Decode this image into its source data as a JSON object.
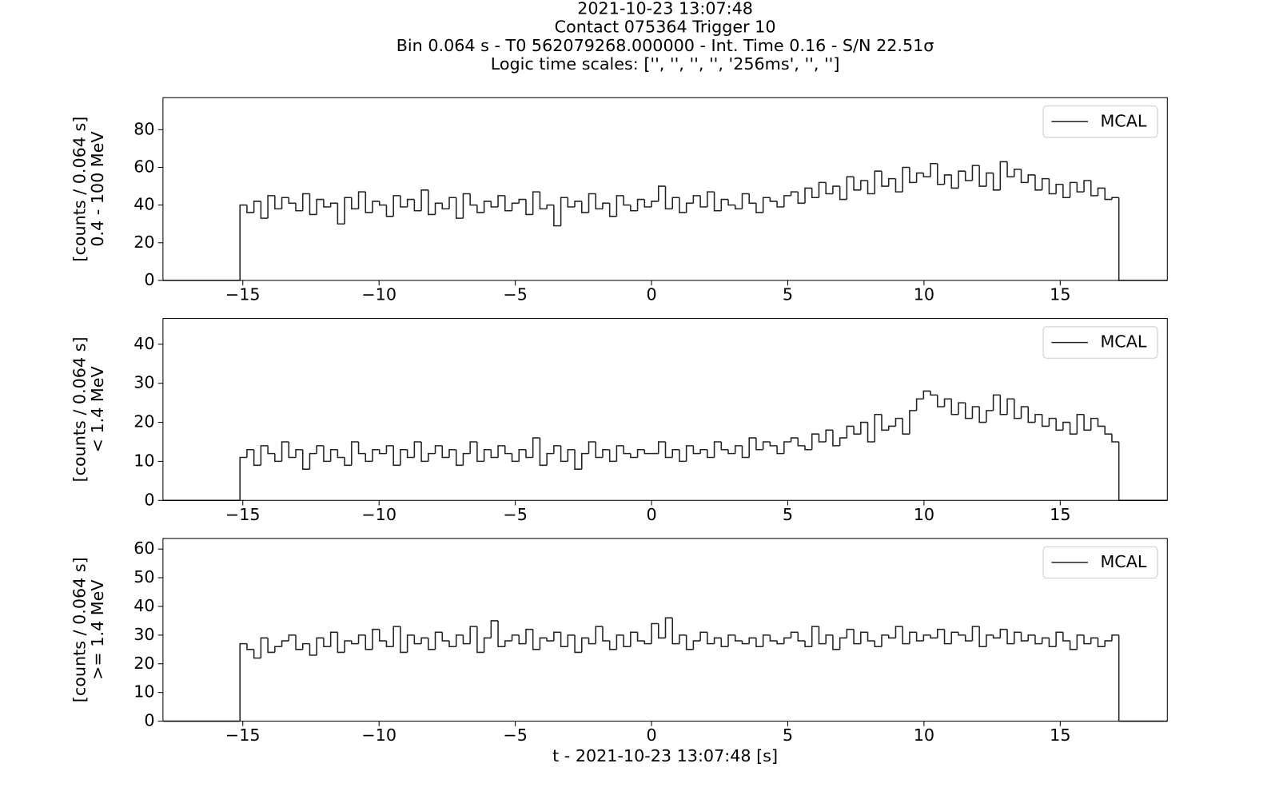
{
  "suptitle": [
    "2021-10-23 13:07:48",
    "Contact 075364   Trigger 10",
    "Bin 0.064 s - T0 562079268.000000 - Int. Time 0.16 - S/N 22.51σ",
    "Logic time scales: ['', '', '', '', '256ms', '', '']"
  ],
  "chart_data": [
    {
      "type": "histogram",
      "ylabel": [
        "[counts / 0.064 s]",
        "0.4 - 100 MeV"
      ],
      "legend": "upper right",
      "xlim": [
        -17.93,
        18.93
      ],
      "xticks": [
        {
          "value": -15,
          "label": "−15"
        },
        {
          "value": -10,
          "label": "−10"
        },
        {
          "value": -5,
          "label": "−5"
        },
        0,
        5,
        10,
        15
      ],
      "ylim": [
        0,
        97
      ],
      "yticks": [
        0,
        20,
        40,
        60,
        80
      ],
      "bins": [
        -15.104,
        -14.848,
        -14.592,
        -14.336,
        -14.08,
        -13.824,
        -13.568,
        -13.312,
        -13.056,
        -12.8,
        -12.544,
        -12.288,
        -12.032,
        -11.776,
        -11.52,
        -11.264,
        -11.008,
        -10.752,
        -10.496,
        -10.24,
        -9.984,
        -9.728,
        -9.472,
        -9.216,
        -8.96,
        -8.704,
        -8.448,
        -8.192,
        -7.936,
        -7.68,
        -7.424,
        -7.168,
        -6.912,
        -6.656,
        -6.4,
        -6.144,
        -5.888,
        -5.632,
        -5.376,
        -5.12,
        -4.864,
        -4.608,
        -4.352,
        -4.096,
        -3.84,
        -3.584,
        -3.328,
        -3.072,
        -2.816,
        -2.56,
        -2.304,
        -2.048,
        -1.792,
        -1.536,
        -1.28,
        -1.024,
        -0.768,
        -0.512,
        -0.256,
        0,
        0.256,
        0.512,
        0.768,
        1.024,
        1.28,
        1.536,
        1.792,
        2.048,
        2.304,
        2.56,
        2.816,
        3.072,
        3.328,
        3.584,
        3.84,
        4.096,
        4.352,
        4.608,
        4.864,
        5.12,
        5.376,
        5.632,
        5.888,
        6.144,
        6.4,
        6.656,
        6.912,
        7.168,
        7.424,
        7.68,
        7.936,
        8.192,
        8.448,
        8.704,
        8.96,
        9.216,
        9.472,
        9.728,
        9.984,
        10.24,
        10.496,
        10.752,
        11.008,
        11.264,
        11.52,
        11.776,
        12.032,
        12.288,
        12.544,
        12.8,
        13.056,
        13.312,
        13.568,
        13.824,
        14.08,
        14.336,
        14.592,
        14.848,
        15.104,
        15.36,
        15.616,
        15.872,
        16.128,
        16.384,
        16.64,
        16.896,
        17.152
      ],
      "series": [
        {
          "name": "MCAL",
          "color": "#222222",
          "values": [
            40,
            36,
            42,
            33,
            45,
            38,
            44,
            41,
            37,
            46,
            35,
            43,
            39,
            41,
            30,
            44,
            38,
            47,
            36,
            42,
            40,
            34,
            45,
            39,
            43,
            37,
            48,
            35,
            41,
            38,
            44,
            33,
            46,
            40,
            36,
            42,
            39,
            45,
            37,
            41,
            43,
            35,
            47,
            38,
            40,
            29,
            44,
            39,
            42,
            36,
            46,
            38,
            41,
            34,
            45,
            40,
            37,
            43,
            39,
            42,
            50,
            38,
            44,
            36,
            41,
            45,
            39,
            47,
            37,
            43,
            40,
            38,
            46,
            41,
            36,
            44,
            42,
            39,
            45,
            47,
            41,
            49,
            44,
            52,
            46,
            50,
            43,
            55,
            48,
            53,
            46,
            58,
            50,
            54,
            47,
            60,
            52,
            57,
            55,
            62,
            51,
            56,
            49,
            58,
            53,
            61,
            50,
            57,
            48,
            63,
            55,
            59,
            52,
            56,
            48,
            54,
            46,
            51,
            44,
            52,
            47,
            53,
            45,
            49,
            43,
            44
          ]
        }
      ]
    },
    {
      "type": "histogram",
      "ylabel": [
        "[counts / 0.064 s]",
        "< 1.4 MeV"
      ],
      "legend": "upper right",
      "xlim": [
        -17.93,
        18.93
      ],
      "xticks": [
        {
          "value": -15,
          "label": "−15"
        },
        {
          "value": -10,
          "label": "−10"
        },
        {
          "value": -5,
          "label": "−5"
        },
        0,
        5,
        10,
        15
      ],
      "ylim": [
        0,
        46.6
      ],
      "yticks": [
        0,
        10,
        20,
        30,
        40
      ],
      "bins": [
        -15.104,
        -14.848,
        -14.592,
        -14.336,
        -14.08,
        -13.824,
        -13.568,
        -13.312,
        -13.056,
        -12.8,
        -12.544,
        -12.288,
        -12.032,
        -11.776,
        -11.52,
        -11.264,
        -11.008,
        -10.752,
        -10.496,
        -10.24,
        -9.984,
        -9.728,
        -9.472,
        -9.216,
        -8.96,
        -8.704,
        -8.448,
        -8.192,
        -7.936,
        -7.68,
        -7.424,
        -7.168,
        -6.912,
        -6.656,
        -6.4,
        -6.144,
        -5.888,
        -5.632,
        -5.376,
        -5.12,
        -4.864,
        -4.608,
        -4.352,
        -4.096,
        -3.84,
        -3.584,
        -3.328,
        -3.072,
        -2.816,
        -2.56,
        -2.304,
        -2.048,
        -1.792,
        -1.536,
        -1.28,
        -1.024,
        -0.768,
        -0.512,
        -0.256,
        0,
        0.256,
        0.512,
        0.768,
        1.024,
        1.28,
        1.536,
        1.792,
        2.048,
        2.304,
        2.56,
        2.816,
        3.072,
        3.328,
        3.584,
        3.84,
        4.096,
        4.352,
        4.608,
        4.864,
        5.12,
        5.376,
        5.632,
        5.888,
        6.144,
        6.4,
        6.656,
        6.912,
        7.168,
        7.424,
        7.68,
        7.936,
        8.192,
        8.448,
        8.704,
        8.96,
        9.216,
        9.472,
        9.728,
        9.984,
        10.24,
        10.496,
        10.752,
        11.008,
        11.264,
        11.52,
        11.776,
        12.032,
        12.288,
        12.544,
        12.8,
        13.056,
        13.312,
        13.568,
        13.824,
        14.08,
        14.336,
        14.592,
        14.848,
        15.104,
        15.36,
        15.616,
        15.872,
        16.128,
        16.384,
        16.64,
        16.896,
        17.152
      ],
      "series": [
        {
          "name": "MCAL",
          "color": "#222222",
          "values": [
            11,
            13,
            9,
            14,
            12,
            10,
            15,
            11,
            13,
            8,
            12,
            14,
            10,
            13,
            11,
            9,
            15,
            12,
            10,
            13,
            12,
            14,
            9,
            13,
            11,
            15,
            10,
            12,
            14,
            11,
            13,
            9,
            12,
            15,
            10,
            13,
            11,
            14,
            12,
            10,
            13,
            11,
            16,
            9,
            12,
            14,
            10,
            13,
            8,
            12,
            15,
            11,
            13,
            10,
            14,
            12,
            11,
            13,
            12,
            12,
            15,
            11,
            13,
            10,
            14,
            12,
            13,
            11,
            15,
            13,
            12,
            14,
            11,
            16,
            13,
            15,
            14,
            12,
            15,
            16,
            14,
            13,
            17,
            15,
            18,
            14,
            16,
            19,
            17,
            20,
            15,
            22,
            18,
            19,
            21,
            17,
            23,
            26,
            28,
            27,
            24,
            26,
            22,
            25,
            21,
            24,
            20,
            23,
            27,
            22,
            26,
            21,
            24,
            20,
            22,
            19,
            21,
            18,
            20,
            17,
            22,
            18,
            21,
            19,
            17,
            15
          ]
        }
      ]
    },
    {
      "type": "histogram",
      "ylabel": [
        "[counts / 0.064 s]",
        ">= 1.4 MeV"
      ],
      "legend": "upper right",
      "xlabel": "t - 2021-10-23 13:07:48 [s]",
      "xlim": [
        -17.93,
        18.93
      ],
      "xticks": [
        {
          "value": -15,
          "label": "−15"
        },
        {
          "value": -10,
          "label": "−10"
        },
        {
          "value": -5,
          "label": "−5"
        },
        0,
        5,
        10,
        15
      ],
      "ylim": [
        0,
        63.7
      ],
      "yticks": [
        0,
        10,
        20,
        30,
        40,
        50,
        60
      ],
      "bins": [
        -15.104,
        -14.848,
        -14.592,
        -14.336,
        -14.08,
        -13.824,
        -13.568,
        -13.312,
        -13.056,
        -12.8,
        -12.544,
        -12.288,
        -12.032,
        -11.776,
        -11.52,
        -11.264,
        -11.008,
        -10.752,
        -10.496,
        -10.24,
        -9.984,
        -9.728,
        -9.472,
        -9.216,
        -8.96,
        -8.704,
        -8.448,
        -8.192,
        -7.936,
        -7.68,
        -7.424,
        -7.168,
        -6.912,
        -6.656,
        -6.4,
        -6.144,
        -5.888,
        -5.632,
        -5.376,
        -5.12,
        -4.864,
        -4.608,
        -4.352,
        -4.096,
        -3.84,
        -3.584,
        -3.328,
        -3.072,
        -2.816,
        -2.56,
        -2.304,
        -2.048,
        -1.792,
        -1.536,
        -1.28,
        -1.024,
        -0.768,
        -0.512,
        -0.256,
        0,
        0.256,
        0.512,
        0.768,
        1.024,
        1.28,
        1.536,
        1.792,
        2.048,
        2.304,
        2.56,
        2.816,
        3.072,
        3.328,
        3.584,
        3.84,
        4.096,
        4.352,
        4.608,
        4.864,
        5.12,
        5.376,
        5.632,
        5.888,
        6.144,
        6.4,
        6.656,
        6.912,
        7.168,
        7.424,
        7.68,
        7.936,
        8.192,
        8.448,
        8.704,
        8.96,
        9.216,
        9.472,
        9.728,
        9.984,
        10.24,
        10.496,
        10.752,
        11.008,
        11.264,
        11.52,
        11.776,
        12.032,
        12.288,
        12.544,
        12.8,
        13.056,
        13.312,
        13.568,
        13.824,
        14.08,
        14.336,
        14.592,
        14.848,
        15.104,
        15.36,
        15.616,
        15.872,
        16.128,
        16.384,
        16.64,
        16.896,
        17.152
      ],
      "series": [
        {
          "name": "MCAL",
          "color": "#222222",
          "values": [
            27,
            25,
            22,
            29,
            24,
            26,
            28,
            30,
            25,
            27,
            23,
            29,
            26,
            31,
            24,
            28,
            27,
            30,
            25,
            32,
            28,
            26,
            33,
            24,
            30,
            27,
            29,
            25,
            31,
            28,
            26,
            30,
            27,
            33,
            24,
            29,
            35,
            26,
            28,
            30,
            27,
            32,
            25,
            29,
            28,
            31,
            26,
            30,
            24,
            29,
            27,
            33,
            28,
            25,
            30,
            26,
            31,
            28,
            27,
            34,
            29,
            36,
            27,
            30,
            25,
            28,
            31,
            27,
            29,
            26,
            30,
            28,
            27,
            29,
            26,
            30,
            28,
            27,
            29,
            31,
            28,
            26,
            33,
            27,
            30,
            25,
            29,
            32,
            27,
            31,
            28,
            26,
            30,
            29,
            33,
            27,
            31,
            28,
            30,
            29,
            32,
            27,
            31,
            30,
            28,
            33,
            26,
            30,
            29,
            32,
            27,
            31,
            28,
            30,
            27,
            29,
            26,
            31,
            28,
            25,
            30,
            27,
            29,
            26,
            28,
            30
          ]
        }
      ]
    }
  ]
}
